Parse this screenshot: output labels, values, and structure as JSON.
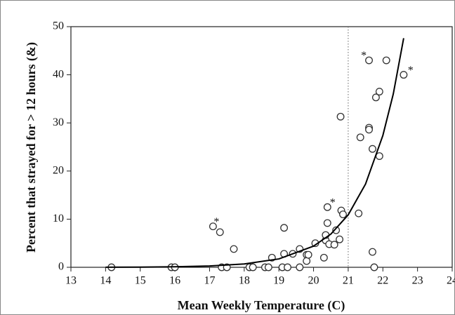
{
  "chart_data": {
    "type": "scatter",
    "x_label": "Mean Weekly Temperature (C)",
    "y_label": "Percent that strayed for > 12 hours (&)",
    "xlim": [
      13,
      24
    ],
    "ylim": [
      0,
      50
    ],
    "xticks": [
      13,
      14,
      15,
      16,
      17,
      18,
      19,
      20,
      21,
      22,
      23,
      24
    ],
    "yticks": [
      0,
      10,
      20,
      30,
      40,
      50
    ],
    "vline": 21,
    "series": [
      {
        "type": "scatter",
        "color": "#333333",
        "x": [
          14.17,
          15.9,
          16.0,
          17.1,
          17.3,
          17.35,
          17.5,
          17.7,
          18.15,
          18.25,
          18.6,
          18.7,
          18.8,
          19.15,
          19.1,
          19.25,
          19.15,
          19.4,
          19.6,
          19.6,
          19.8,
          19.8,
          19.85,
          20.05,
          20.3,
          20.35,
          20.35,
          20.4,
          20.4,
          20.45,
          20.6,
          20.65,
          20.75,
          20.78,
          20.8,
          20.85,
          21.3,
          21.35,
          21.6,
          21.6,
          21.6,
          21.7,
          21.7,
          21.75,
          21.8,
          21.9,
          21.9,
          22.1,
          22.6
        ],
        "values": [
          0,
          0,
          0,
          8.5,
          7.3,
          0,
          0,
          3.8,
          0,
          0,
          0,
          0,
          2.0,
          8.2,
          0,
          0,
          2.8,
          2.8,
          3.8,
          0,
          2.6,
          1.3,
          2.6,
          5.0,
          2.0,
          5.6,
          6.7,
          9.2,
          12.5,
          4.8,
          4.7,
          7.7,
          5.8,
          31.3,
          11.8,
          11,
          11.2,
          27,
          43,
          29,
          28.6,
          3.2,
          24.6,
          0,
          35.3,
          36.5,
          23.1,
          43,
          40
        ]
      },
      {
        "type": "line",
        "color": "#000000",
        "x": [
          14,
          15,
          16,
          17,
          18,
          19,
          20,
          20.5,
          21,
          21.5,
          22,
          22.3,
          22.6
        ],
        "values": [
          0.02,
          0.04,
          0.11,
          0.28,
          0.7,
          1.74,
          4.4,
          6.9,
          10.9,
          17.3,
          27.4,
          36,
          47.6
        ]
      }
    ],
    "annotations": [
      {
        "text": "*",
        "x": 17.2,
        "y": 9.3
      },
      {
        "text": "*",
        "x": 20.55,
        "y": 13.3
      },
      {
        "text": "*",
        "x": 21.45,
        "y": 43.8
      },
      {
        "text": "*",
        "x": 22.8,
        "y": 40.8
      }
    ]
  }
}
